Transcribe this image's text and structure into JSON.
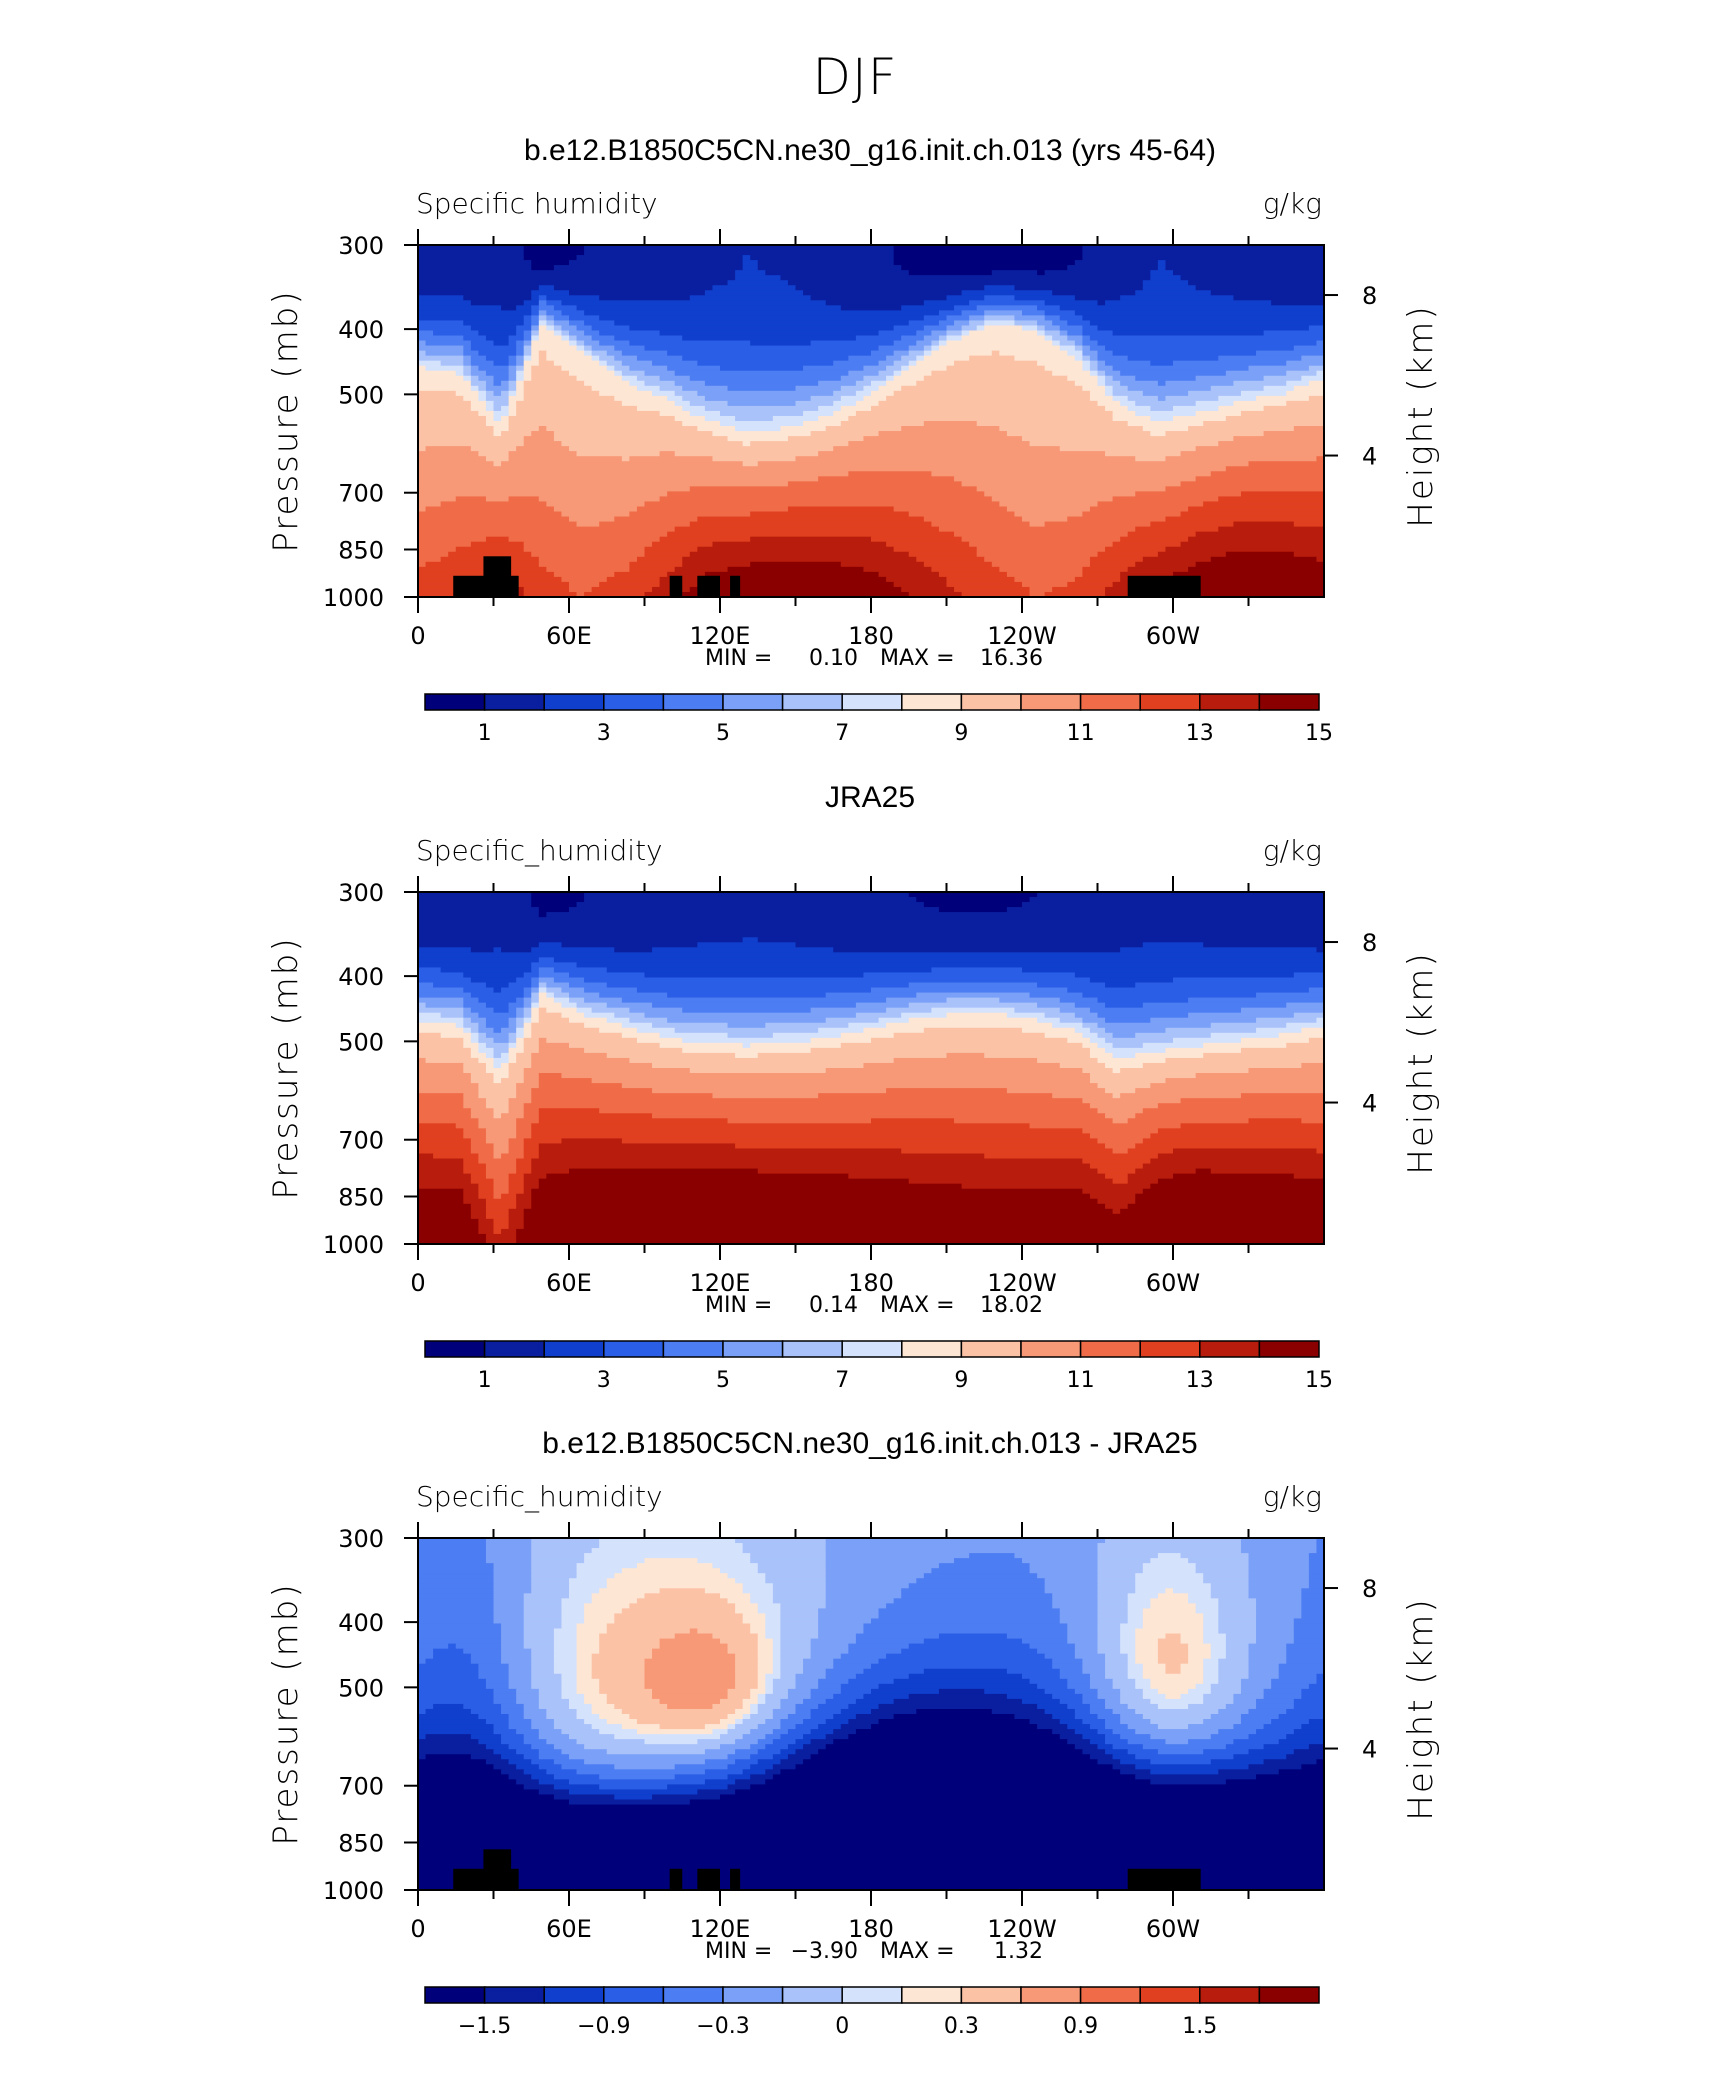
{
  "figure_title": "DJF",
  "colors": {
    "abs_scale": [
      "#00007a",
      "#0a1fa0",
      "#0f3fcc",
      "#2a5ee6",
      "#4d7df2",
      "#7aa0f7",
      "#a9c2fa",
      "#d4e2fc",
      "#fde6d4",
      "#fbc2a6",
      "#f79876",
      "#f06c48",
      "#e0401f",
      "#b81c0c",
      "#8a0000"
    ],
    "diff_scale": [
      "#00007a",
      "#0a1fa0",
      "#0f3fcc",
      "#2a5ee6",
      "#4d7df2",
      "#7aa0f7",
      "#a9c2fa",
      "#d4e2fc",
      "#fde6d4",
      "#fbc2a6",
      "#f79876",
      "#f06c48",
      "#e0401f",
      "#b81c0c",
      "#8a0000"
    ],
    "land_mask": "#000000"
  },
  "chart_data": [
    {
      "type": "heatmap",
      "title": "b.e12.B1850C5CN.ne30_g16.init.ch.013 (yrs 45-64)",
      "left_label": "Specific humidity",
      "units": "g/kg",
      "ylabel": "Pressure (mb)",
      "y2label": "Height (km)",
      "x_ticks": [
        "0",
        "60E",
        "120E",
        "180",
        "120W",
        "60W"
      ],
      "y_ticks": [
        "300",
        "400",
        "500",
        "700",
        "850",
        "1000"
      ],
      "y2_ticks": [
        "8",
        "4"
      ],
      "stats": {
        "min_label": "MIN =",
        "min": "0.10",
        "max_label": "MAX =",
        "max": "16.36"
      },
      "colorbar_labels": [
        "1",
        "3",
        "5",
        "7",
        "9",
        "11",
        "13",
        "15"
      ],
      "fields": {
        "kind": "absolute",
        "surface": [
          12.5,
          13.0,
          13.8,
          12.5,
          12.0,
          12.5,
          13.5,
          14.8,
          15.3,
          15.5,
          15.3,
          14.8,
          14.0,
          13.2,
          12.5,
          12.0,
          12.3,
          13.5,
          14.5,
          15.3,
          15.8,
          15.6,
          15.1
        ],
        "moist_depth": [
          460,
          470,
          560,
          395,
          440,
          485,
          515,
          555,
          580,
          570,
          545,
          505,
          460,
          420,
          395,
          405,
          445,
          525,
          560,
          540,
          520,
          505,
          480
        ],
        "upper": [
          1.2,
          1.3,
          1.6,
          0.6,
          1.0,
          1.3,
          1.5,
          1.8,
          2.0,
          1.9,
          1.6,
          1.2,
          0.8,
          0.5,
          0.4,
          0.5,
          0.9,
          1.6,
          2.0,
          1.8,
          1.6,
          1.4,
          1.2
        ]
      },
      "land_blocks": [
        {
          "lon0": 14,
          "lon1": 40,
          "p_top": 930
        },
        {
          "lon0": 26,
          "lon1": 37,
          "p_top": 870
        },
        {
          "lon0": 100,
          "lon1": 105,
          "p_top": 930
        },
        {
          "lon0": 111,
          "lon1": 120,
          "p_top": 930
        },
        {
          "lon0": 124,
          "lon1": 128,
          "p_top": 930
        },
        {
          "lon0": 282,
          "lon1": 311,
          "p_top": 930
        }
      ]
    },
    {
      "type": "heatmap",
      "title": "JRA25",
      "left_label": "Specific_humidity",
      "units": "g/kg",
      "ylabel": "Pressure (mb)",
      "y2label": "Height (km)",
      "x_ticks": [
        "0",
        "60E",
        "120E",
        "180",
        "120W",
        "60W"
      ],
      "y_ticks": [
        "300",
        "400",
        "500",
        "700",
        "850",
        "1000"
      ],
      "y2_ticks": [
        "8",
        "4"
      ],
      "stats": {
        "min_label": "MIN =",
        "min": "0.14",
        "max_label": "MAX =",
        "max": "18.02"
      },
      "colorbar_labels": [
        "1",
        "3",
        "5",
        "7",
        "9",
        "11",
        "13",
        "15"
      ],
      "fields": {
        "kind": "absolute",
        "surface": [
          16.0,
          16.0,
          13.0,
          16.2,
          16.8,
          17.0,
          17.2,
          17.3,
          17.2,
          17.0,
          16.8,
          16.5,
          16.2,
          16.0,
          15.8,
          15.8,
          16.0,
          15.0,
          16.8,
          17.2,
          17.0,
          16.8,
          16.3
        ],
        "moist_depth": [
          470,
          480,
          560,
          430,
          460,
          480,
          500,
          510,
          515,
          510,
          500,
          485,
          470,
          460,
          460,
          470,
          490,
          540,
          525,
          515,
          505,
          495,
          480
        ],
        "upper": [
          1.2,
          1.3,
          1.7,
          0.8,
          1.0,
          1.2,
          1.4,
          1.6,
          1.7,
          1.6,
          1.4,
          1.2,
          1.0,
          0.9,
          0.9,
          1.0,
          1.3,
          1.6,
          1.7,
          1.6,
          1.5,
          1.4,
          1.2
        ]
      },
      "land_blocks": []
    },
    {
      "type": "heatmap",
      "title": "b.e12.B1850C5CN.ne30_g16.init.ch.013 - JRA25",
      "left_label": "Specific_humidity",
      "units": "g/kg",
      "ylabel": "Pressure (mb)",
      "y2label": "Height (km)",
      "x_ticks": [
        "0",
        "60E",
        "120E",
        "180",
        "120W",
        "60W"
      ],
      "y_ticks": [
        "300",
        "400",
        "500",
        "700",
        "850",
        "1000"
      ],
      "y2_ticks": [
        "8",
        "4"
      ],
      "stats": {
        "min_label": "MIN =",
        "min": "−3.90",
        "max_label": "MAX =",
        "max": "1.32"
      },
      "colorbar_labels": [
        "−1.5",
        "−0.9",
        "−0.3",
        "0",
        "0.3",
        "0.9",
        "1.5"
      ],
      "fields": {
        "kind": "difference",
        "blobs": [
          {
            "lon": 95,
            "p": 500,
            "dlon": 52,
            "dp": 170,
            "amp": 1.05
          },
          {
            "lon": 118,
            "p": 500,
            "dlon": 20,
            "dp": 80,
            "amp": 0.55
          },
          {
            "lon": 298,
            "p": 500,
            "dlon": 24,
            "dp": 150,
            "amp": 1.25
          },
          {
            "lon": 200,
            "p": 820,
            "dlon": 50,
            "dp": 190,
            "amp": -3.5
          },
          {
            "lon": 60,
            "p": 860,
            "dlon": 55,
            "dp": 120,
            "amp": -1.4
          },
          {
            "lon": 320,
            "p": 850,
            "dlon": 50,
            "dp": 150,
            "amp": -1.5
          },
          {
            "lon": 300,
            "p": 780,
            "dlon": 110,
            "dp": 280,
            "amp": -0.7
          },
          {
            "lon": 20,
            "p": 700,
            "dlon": 20,
            "dp": 300,
            "amp": -0.8
          },
          {
            "lon": 110,
            "p": 900,
            "dlon": 40,
            "dp": 120,
            "amp": -0.9
          }
        ],
        "base": -0.4
      },
      "land_blocks": [
        {
          "lon0": 14,
          "lon1": 40,
          "p_top": 930
        },
        {
          "lon0": 26,
          "lon1": 37,
          "p_top": 870
        },
        {
          "lon0": 100,
          "lon1": 105,
          "p_top": 930
        },
        {
          "lon0": 111,
          "lon1": 120,
          "p_top": 930
        },
        {
          "lon0": 124,
          "lon1": 128,
          "p_top": 930
        },
        {
          "lon0": 282,
          "lon1": 311,
          "p_top": 930
        }
      ]
    }
  ]
}
